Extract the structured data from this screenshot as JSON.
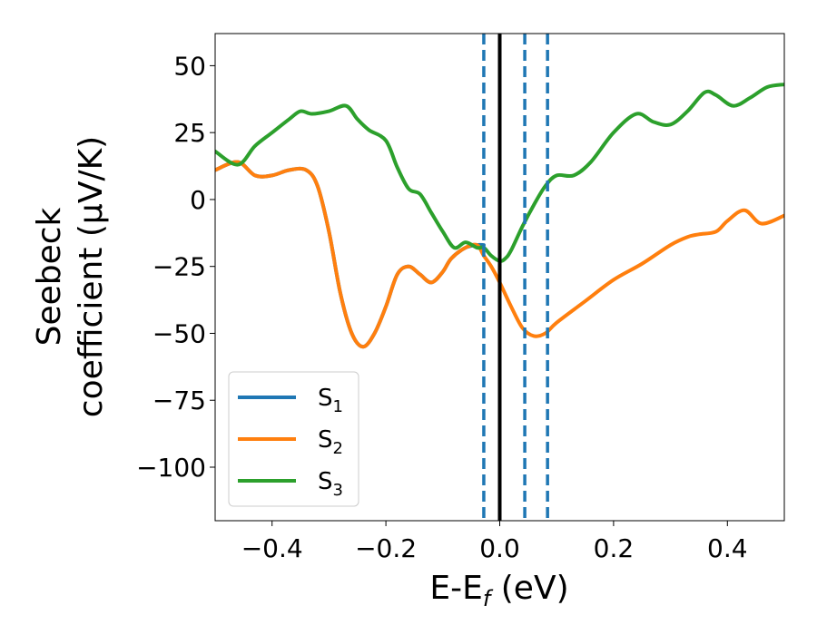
{
  "chart_data": {
    "type": "line",
    "xlabel": "E-E",
    "xlabel_sub": "f",
    "xlabel_unit": " (eV)",
    "ylabel_line1": "Seebeck",
    "ylabel_line2": "coefficient  (μV/K)",
    "xlim": [
      -0.5,
      0.5
    ],
    "ylim": [
      -120,
      62
    ],
    "xticks": [
      -0.4,
      -0.2,
      0.0,
      0.2,
      0.4
    ],
    "xtick_labels": [
      "−0.4",
      "−0.2",
      "0.0",
      "0.2",
      "0.4"
    ],
    "yticks": [
      50,
      25,
      0,
      -25,
      -50,
      -75,
      -100
    ],
    "ytick_labels": [
      "50",
      "25",
      "0",
      "−25",
      "−50",
      "−75",
      "−100"
    ],
    "legend_position": "lower-left",
    "vlines": [
      {
        "x": 0.0,
        "style": "solid",
        "color": "#000000"
      },
      {
        "x": -0.028,
        "style": "dashed",
        "color": "#1f77b4"
      },
      {
        "x": 0.044,
        "style": "dashed",
        "color": "#1f77b4"
      },
      {
        "x": 0.084,
        "style": "dashed",
        "color": "#1f77b4"
      }
    ],
    "series": [
      {
        "name": "S",
        "sub": "1",
        "color": "#1f77b4",
        "x": [
          -0.5,
          -0.46,
          -0.43,
          -0.4,
          -0.37,
          -0.34,
          -0.32,
          -0.3,
          -0.28,
          -0.26,
          -0.24,
          -0.22,
          -0.2,
          -0.18,
          -0.16,
          -0.14,
          -0.12,
          -0.1,
          -0.085,
          -0.06,
          -0.04,
          -0.028
        ],
        "values": [
          11,
          14,
          9,
          9,
          11,
          11,
          5,
          -12,
          -35,
          -50,
          -55,
          -50,
          -40,
          -28,
          -25,
          -28,
          -31,
          -27,
          -22,
          -18,
          -17,
          -17
        ]
      },
      {
        "name": "S",
        "sub": "2",
        "color": "#ff7f0e",
        "x": [
          -0.5,
          -0.46,
          -0.43,
          -0.4,
          -0.37,
          -0.34,
          -0.32,
          -0.3,
          -0.28,
          -0.26,
          -0.24,
          -0.22,
          -0.2,
          -0.18,
          -0.16,
          -0.14,
          -0.12,
          -0.1,
          -0.085,
          -0.06,
          -0.04,
          -0.028,
          -0.015,
          0.0,
          0.02,
          0.04,
          0.06,
          0.08,
          0.1,
          0.15,
          0.2,
          0.25,
          0.3,
          0.33,
          0.35,
          0.38,
          0.4,
          0.43,
          0.46,
          0.5
        ],
        "values": [
          11,
          14,
          9,
          9,
          11,
          11,
          5,
          -12,
          -35,
          -50,
          -55,
          -50,
          -40,
          -28,
          -25,
          -28,
          -31,
          -27,
          -22,
          -18,
          -17,
          -21,
          -25,
          -31,
          -40,
          -48,
          -51,
          -50,
          -46,
          -38,
          -30,
          -24,
          -17,
          -14,
          -13,
          -12,
          -8,
          -4,
          -9,
          -6
        ]
      },
      {
        "name": "S",
        "sub": "3",
        "color": "#2ca02c",
        "x": [
          -0.5,
          -0.46,
          -0.43,
          -0.4,
          -0.37,
          -0.35,
          -0.33,
          -0.3,
          -0.27,
          -0.25,
          -0.23,
          -0.2,
          -0.18,
          -0.16,
          -0.14,
          -0.12,
          -0.1,
          -0.08,
          -0.06,
          -0.04,
          -0.028,
          -0.015,
          0.0,
          0.01,
          0.02,
          0.04,
          0.06,
          0.08,
          0.1,
          0.13,
          0.16,
          0.2,
          0.24,
          0.27,
          0.3,
          0.33,
          0.36,
          0.38,
          0.41,
          0.44,
          0.47,
          0.5
        ],
        "values": [
          18,
          13,
          20,
          25,
          30,
          33,
          32,
          33,
          35,
          30,
          26,
          22,
          12,
          4,
          2,
          -5,
          -12,
          -18,
          -16,
          -18,
          -18,
          -21,
          -23,
          -22,
          -19,
          -10,
          -2,
          5,
          9,
          9,
          14,
          25,
          32,
          29,
          28,
          33,
          40,
          39,
          35,
          38,
          42,
          43
        ]
      }
    ]
  }
}
